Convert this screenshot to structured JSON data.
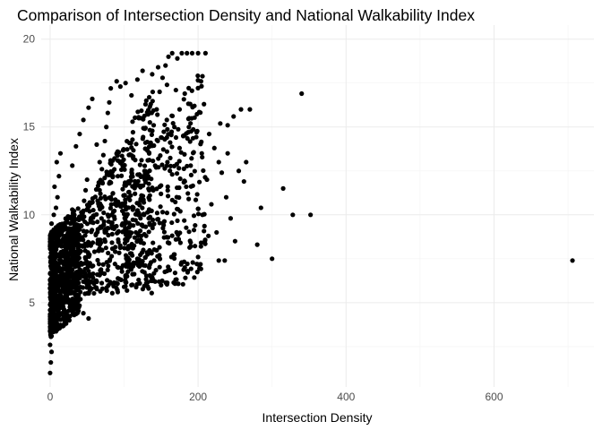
{
  "chart_data": {
    "type": "scatter",
    "title": "Comparison of Intersection Density and National Walkability Index",
    "xlabel": "Intersection Density",
    "ylabel": "National Walkability Index",
    "xlim": [
      -12,
      735
    ],
    "ylim": [
      0.2,
      20.8
    ],
    "x_ticks": [
      0,
      200,
      400,
      600
    ],
    "x_minor_ticks": [
      100,
      300,
      500,
      700
    ],
    "y_ticks": [
      5,
      10,
      15,
      20
    ],
    "y_minor_ticks": [
      2.5,
      7.5,
      12.5,
      17.5
    ],
    "grid": true,
    "legend": "none",
    "point_color": "#000000",
    "points": [
      [
        0,
        1.0
      ],
      [
        1,
        1.6
      ],
      [
        2,
        2.2
      ],
      [
        0,
        2.6
      ],
      [
        2,
        3.1
      ],
      [
        1,
        3.5
      ],
      [
        3,
        3.9
      ],
      [
        0,
        4.2
      ],
      [
        2,
        4.6
      ],
      [
        4,
        5.0
      ],
      [
        1,
        5.3
      ],
      [
        3,
        5.6
      ],
      [
        5,
        6.0
      ],
      [
        0,
        6.3
      ],
      [
        2,
        6.6
      ],
      [
        6,
        7.0
      ],
      [
        1,
        7.4
      ],
      [
        4,
        7.8
      ],
      [
        0,
        8.2
      ],
      [
        3,
        8.6
      ],
      [
        7,
        9.0
      ],
      [
        2,
        9.5
      ],
      [
        5,
        10.0
      ],
      [
        8,
        10.4
      ],
      [
        10,
        11.0
      ],
      [
        6,
        11.6
      ],
      [
        12,
        12.2
      ],
      [
        9,
        13.0
      ],
      [
        14,
        13.5
      ],
      [
        11,
        6.2
      ],
      [
        15,
        6.8
      ],
      [
        18,
        7.2
      ],
      [
        20,
        7.6
      ],
      [
        22,
        8.0
      ],
      [
        24,
        8.5
      ],
      [
        13,
        5.4
      ],
      [
        16,
        5.0
      ],
      [
        19,
        4.6
      ],
      [
        23,
        4.3
      ],
      [
        26,
        4.0
      ],
      [
        12,
        7.0
      ],
      [
        17,
        7.9
      ],
      [
        21,
        8.8
      ],
      [
        25,
        9.2
      ],
      [
        28,
        9.8
      ],
      [
        30,
        10.3
      ],
      [
        8,
        4.8
      ],
      [
        10,
        5.8
      ],
      [
        14,
        6.5
      ],
      [
        27,
        6.9
      ],
      [
        32,
        7.3
      ],
      [
        35,
        7.7
      ],
      [
        38,
        8.1
      ],
      [
        40,
        8.7
      ],
      [
        42,
        9.4
      ],
      [
        44,
        10.1
      ],
      [
        46,
        10.8
      ],
      [
        48,
        11.4
      ],
      [
        50,
        12.0
      ],
      [
        33,
        5.6
      ],
      [
        36,
        6.1
      ],
      [
        39,
        6.4
      ],
      [
        41,
        5.2
      ],
      [
        45,
        4.4
      ],
      [
        52,
        4.1
      ],
      [
        55,
        6.6
      ],
      [
        58,
        7.1
      ],
      [
        60,
        7.9
      ],
      [
        62,
        8.9
      ],
      [
        64,
        9.6
      ],
      [
        66,
        10.5
      ],
      [
        68,
        11.2
      ],
      [
        70,
        12.6
      ],
      [
        72,
        13.4
      ],
      [
        74,
        14.2
      ],
      [
        76,
        15.0
      ],
      [
        78,
        15.8
      ],
      [
        80,
        16.4
      ],
      [
        82,
        17.2
      ],
      [
        30,
        12.8
      ],
      [
        35,
        13.9
      ],
      [
        40,
        14.6
      ],
      [
        45,
        15.4
      ],
      [
        52,
        16.1
      ],
      [
        57,
        16.6
      ],
      [
        63,
        14.0
      ],
      [
        67,
        13.0
      ],
      [
        71,
        11.8
      ],
      [
        75,
        10.9
      ],
      [
        79,
        9.9
      ],
      [
        84,
        8.9
      ],
      [
        88,
        7.9
      ],
      [
        92,
        7.0
      ],
      [
        96,
        6.3
      ],
      [
        100,
        5.9
      ],
      [
        104,
        6.5
      ],
      [
        108,
        7.2
      ],
      [
        112,
        8.1
      ],
      [
        116,
        9.0
      ],
      [
        120,
        10.1
      ],
      [
        124,
        11.0
      ],
      [
        128,
        12.1
      ],
      [
        132,
        13.1
      ],
      [
        136,
        14.1
      ],
      [
        140,
        15.1
      ],
      [
        144,
        16.0
      ],
      [
        148,
        17.0
      ],
      [
        152,
        17.8
      ],
      [
        156,
        18.5
      ],
      [
        160,
        19.0
      ],
      [
        165,
        19.2
      ],
      [
        172,
        18.9
      ],
      [
        178,
        19.2
      ],
      [
        185,
        19.2
      ],
      [
        192,
        19.2
      ],
      [
        200,
        19.2
      ],
      [
        210,
        19.2
      ],
      [
        90,
        17.6
      ],
      [
        95,
        17.3
      ],
      [
        102,
        17.5
      ],
      [
        110,
        16.8
      ],
      [
        118,
        17.7
      ],
      [
        125,
        18.2
      ],
      [
        130,
        16.5
      ],
      [
        138,
        18.0
      ],
      [
        146,
        18.4
      ],
      [
        158,
        17.4
      ],
      [
        170,
        17.1
      ],
      [
        182,
        16.9
      ],
      [
        195,
        16.2
      ],
      [
        204,
        17.6
      ],
      [
        208,
        16.3
      ],
      [
        215,
        14.6
      ],
      [
        222,
        13.8
      ],
      [
        228,
        13.0
      ],
      [
        232,
        12.4
      ],
      [
        240,
        15.1
      ],
      [
        248,
        15.6
      ],
      [
        258,
        16.0
      ],
      [
        238,
        11.0
      ],
      [
        244,
        9.8
      ],
      [
        250,
        8.5
      ],
      [
        236,
        7.4
      ],
      [
        225,
        9.0
      ],
      [
        218,
        10.6
      ],
      [
        212,
        12.0
      ],
      [
        205,
        13.5
      ],
      [
        198,
        14.7
      ],
      [
        190,
        12.8
      ],
      [
        184,
        11.6
      ],
      [
        176,
        10.2
      ],
      [
        170,
        8.6
      ],
      [
        164,
        7.6
      ],
      [
        158,
        6.8
      ],
      [
        150,
        6.0
      ],
      [
        142,
        6.2
      ],
      [
        134,
        7.0
      ],
      [
        126,
        8.0
      ],
      [
        118,
        7.5
      ],
      [
        110,
        6.0
      ],
      [
        182,
        7.0
      ],
      [
        190,
        8.2
      ],
      [
        200,
        7.6
      ],
      [
        186,
        6.8
      ],
      [
        196,
        9.4
      ],
      [
        206,
        10.0
      ],
      [
        214,
        8.8
      ],
      [
        228,
        7.4
      ],
      [
        165,
        12.3
      ],
      [
        158,
        13.6
      ],
      [
        150,
        14.4
      ],
      [
        142,
        12.8
      ],
      [
        134,
        11.4
      ],
      [
        127,
        10.0
      ],
      [
        119,
        8.8
      ],
      [
        106,
        11.9
      ],
      [
        98,
        12.8
      ],
      [
        90,
        13.5
      ],
      [
        85,
        12.2
      ],
      [
        82,
        11.0
      ],
      [
        78,
        10.0
      ],
      [
        74,
        9.0
      ],
      [
        70,
        8.0
      ],
      [
        66,
        7.2
      ],
      [
        61,
        6.2
      ],
      [
        56,
        5.8
      ],
      [
        52,
        6.8
      ],
      [
        48,
        7.5
      ],
      [
        44,
        8.2
      ],
      [
        112,
        14.7
      ],
      [
        120,
        15.5
      ],
      [
        128,
        14.9
      ],
      [
        136,
        16.3
      ],
      [
        145,
        15.7
      ],
      [
        155,
        14.3
      ],
      [
        168,
        15.0
      ],
      [
        175,
        13.8
      ],
      [
        180,
        14.5
      ],
      [
        188,
        15.5
      ],
      [
        175,
        16.0
      ],
      [
        230,
        15.2
      ],
      [
        240,
        13.5
      ],
      [
        255,
        12.5
      ],
      [
        262,
        11.9
      ],
      [
        265,
        13.0
      ],
      [
        270,
        16.0
      ],
      [
        285,
        10.4
      ],
      [
        280,
        8.3
      ],
      [
        300,
        7.5
      ],
      [
        315,
        11.5
      ],
      [
        328,
        10.0
      ],
      [
        340,
        16.9
      ],
      [
        352,
        10.0
      ],
      [
        706,
        7.4
      ]
    ]
  }
}
